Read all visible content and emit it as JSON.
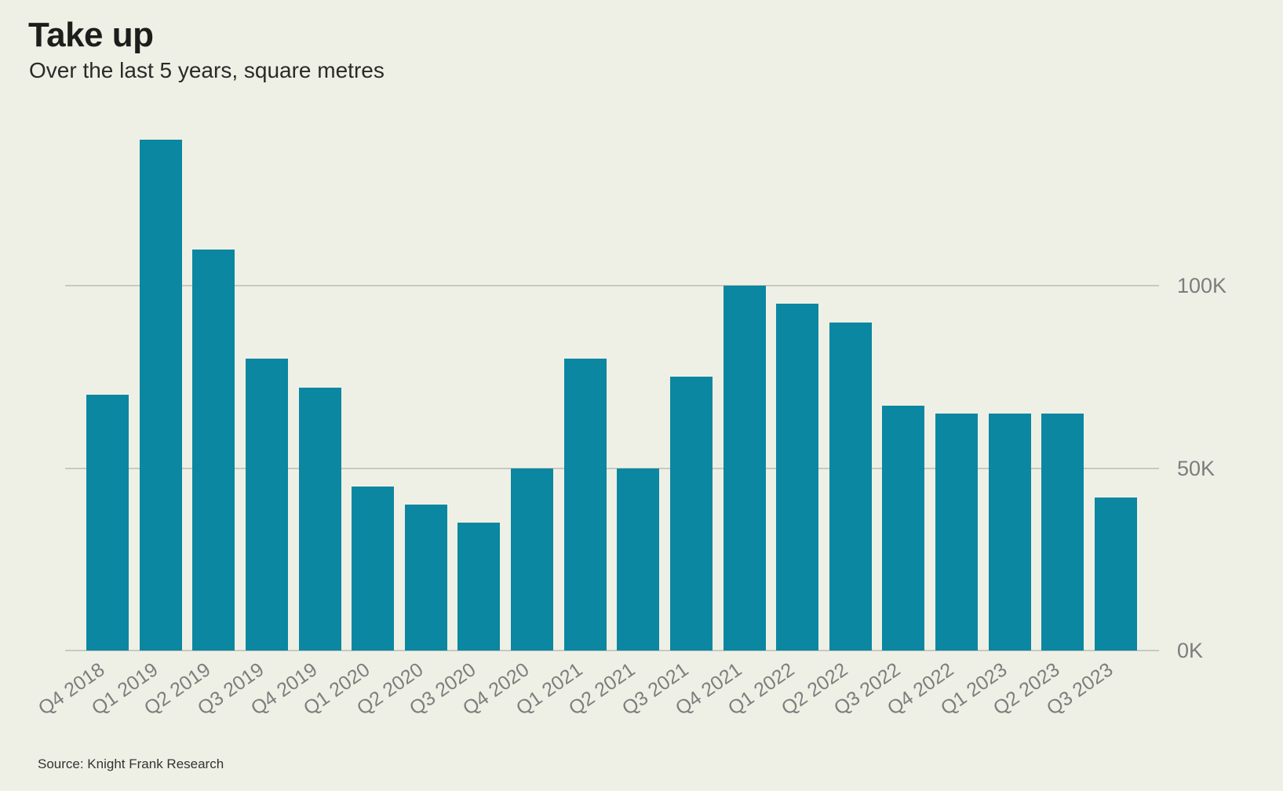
{
  "page": {
    "title": "Take up",
    "subtitle": "Over the last 5 years, square metres",
    "source": "Source: Knight Frank Research"
  },
  "chart_data": {
    "type": "bar",
    "title": "Take up",
    "subtitle": "Over the last 5 years, square metres",
    "xlabel": "",
    "ylabel": "",
    "unit": "square metres",
    "categories": [
      "Q4 2018",
      "Q1 2019",
      "Q2 2019",
      "Q3 2019",
      "Q4 2019",
      "Q1 2020",
      "Q2 2020",
      "Q3 2020",
      "Q4 2020",
      "Q1 2021",
      "Q2 2021",
      "Q3 2021",
      "Q4 2021",
      "Q1 2022",
      "Q2 2022",
      "Q3 2022",
      "Q4 2022",
      "Q1 2023",
      "Q2 2023",
      "Q3 2023"
    ],
    "values": [
      70000,
      140000,
      110000,
      80000,
      72000,
      45000,
      40000,
      35000,
      50000,
      80000,
      50000,
      75000,
      100000,
      95000,
      90000,
      67000,
      65000,
      65000,
      65000,
      42000
    ],
    "yticks": [
      {
        "value": 0,
        "label": "0K"
      },
      {
        "value": 50000,
        "label": "50K"
      },
      {
        "value": 100000,
        "label": "100K"
      }
    ],
    "ylim": [
      0,
      140000
    ],
    "grid": "horizontal",
    "legend_position": "none",
    "ytick_side": "right",
    "xtick_rotation_deg": -35,
    "bar_color": "#0B87A1",
    "source": "Source: Knight Frank Research"
  },
  "colors": {
    "background": "#EFF0E5",
    "bar": "#0B87A1",
    "gridline": "#C8C9C1",
    "axis_label": "#7D7D7D",
    "title": "#1D1D1B",
    "source": "#333330"
  }
}
